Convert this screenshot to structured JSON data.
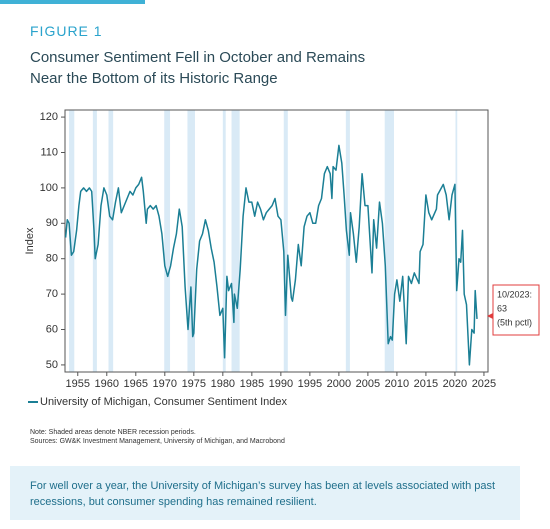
{
  "figure_label": "FIGURE 1",
  "title": [
    "Consumer Sentiment Fell in October and Remains",
    "Near the Bottom of its Historic Range"
  ],
  "chart_data": {
    "type": "line",
    "ylabel": "Index",
    "xlim": [
      1952.8,
      2025.7
    ],
    "ylim": [
      48,
      122
    ],
    "xticks": [
      1955,
      1960,
      1965,
      1970,
      1975,
      1980,
      1985,
      1990,
      1995,
      2000,
      2005,
      2010,
      2015,
      2020,
      2025
    ],
    "yticks": [
      50,
      60,
      70,
      80,
      90,
      100,
      110,
      120
    ],
    "recessions": [
      [
        1953.5,
        1954.4
      ],
      [
        1957.6,
        1958.3
      ],
      [
        1960.3,
        1961.1
      ],
      [
        1969.9,
        1970.9
      ],
      [
        1973.9,
        1975.2
      ],
      [
        1980.0,
        1980.5
      ],
      [
        1981.5,
        1982.9
      ],
      [
        1990.5,
        1991.2
      ],
      [
        2001.2,
        2001.9
      ],
      [
        2007.9,
        2009.5
      ],
      [
        2020.1,
        2020.4
      ]
    ],
    "recession_color": "#d9eaf6",
    "x": [
      1952.9,
      1953.2,
      1953.5,
      1953.9,
      1954.3,
      1954.8,
      1955.2,
      1955.5,
      1956,
      1956.5,
      1957,
      1957.4,
      1957.8,
      1958,
      1958.5,
      1959,
      1959.5,
      1960,
      1960.5,
      1961,
      1961.5,
      1962,
      1962.5,
      1963,
      1963.5,
      1964,
      1964.5,
      1965,
      1965.5,
      1966,
      1966.3,
      1966.8,
      1967,
      1967.5,
      1968,
      1968.5,
      1969,
      1969.5,
      1970,
      1970.5,
      1971,
      1971.5,
      1972,
      1972.5,
      1973,
      1973.5,
      1974,
      1974.5,
      1974.8,
      1975,
      1975.5,
      1976,
      1976.5,
      1977,
      1977.5,
      1978,
      1978.5,
      1979,
      1979.5,
      1980,
      1980.3,
      1980.7,
      1981,
      1981.5,
      1981.9,
      1982,
      1982.5,
      1983,
      1983.5,
      1984,
      1984.5,
      1985,
      1985.5,
      1986,
      1986.5,
      1987,
      1987.5,
      1988,
      1988.5,
      1989,
      1989.5,
      1990,
      1990.5,
      1990.8,
      1991.2,
      1991.8,
      1992,
      1992.5,
      1993,
      1993.5,
      1994,
      1994.5,
      1995,
      1995.5,
      1996,
      1996.5,
      1997,
      1997.5,
      1998,
      1998.5,
      1998.8,
      1999,
      1999.5,
      2000,
      2000.5,
      2000.9,
      2001.3,
      2001.8,
      2002,
      2002.5,
      2003,
      2003.5,
      2004,
      2004.5,
      2005,
      2005.7,
      2006,
      2006.5,
      2007,
      2007.5,
      2008,
      2008.5,
      2008.9,
      2009.2,
      2009.6,
      2010,
      2010.5,
      2011,
      2011.6,
      2012,
      2012.5,
      2013,
      2013.8,
      2014,
      2014.5,
      2015,
      2015.5,
      2016,
      2016.8,
      2017,
      2018,
      2018.5,
      2019,
      2019.5,
      2020,
      2020.3,
      2020.7,
      2021,
      2021.3,
      2021.6,
      2022,
      2022.5,
      2022.9,
      2023.3,
      2023.5,
      2023.8
    ],
    "series": [
      {
        "name": "University of Michigan, Consumer Sentiment Index",
        "color": "#1b7f95",
        "values": [
          86,
          91,
          90,
          81,
          82,
          88,
          95,
          99,
          100,
          99,
          100,
          99,
          88,
          80,
          84,
          95,
          100,
          98,
          92,
          91,
          96,
          100,
          93,
          95,
          97,
          99,
          98,
          100,
          101,
          103,
          99,
          90,
          94,
          95,
          94,
          95,
          92,
          87,
          78,
          75,
          78,
          83,
          87,
          94,
          89,
          72,
          60,
          72,
          58,
          59,
          77,
          85,
          87,
          91,
          88,
          83,
          79,
          72,
          64,
          66,
          52,
          75,
          71,
          73,
          62,
          70,
          66,
          77,
          92,
          100,
          96,
          96,
          92,
          96,
          94,
          91,
          93,
          94,
          95,
          97,
          92,
          91,
          82,
          64,
          81,
          69,
          68,
          74,
          84,
          78,
          89,
          92,
          93,
          90,
          90,
          95,
          97,
          104,
          106,
          104,
          97,
          106,
          105,
          112,
          107,
          98,
          88,
          81,
          93,
          87,
          79,
          89,
          104,
          95,
          95,
          76,
          91,
          83,
          96,
          90,
          78,
          56,
          58,
          57,
          70,
          74,
          68,
          75,
          56,
          75,
          73,
          76,
          73,
          82,
          84,
          98,
          93,
          91,
          94,
          98,
          101,
          98,
          91,
          98,
          101,
          71,
          80,
          79,
          88,
          70,
          67,
          50,
          60,
          59,
          71,
          63
        ]
      }
    ],
    "annotation": [
      "10/2023:",
      "63",
      "(5th pctl)"
    ],
    "note": "Note: Shaded areas denote NBER recession periods.",
    "sources": "Sources: GW&K Investment Management, University of Michigan, and Macrobond"
  },
  "callout": "For well over a year, the University of Michigan’s survey has been at levels associated with past recessions, but consumer spending has remained resilient."
}
